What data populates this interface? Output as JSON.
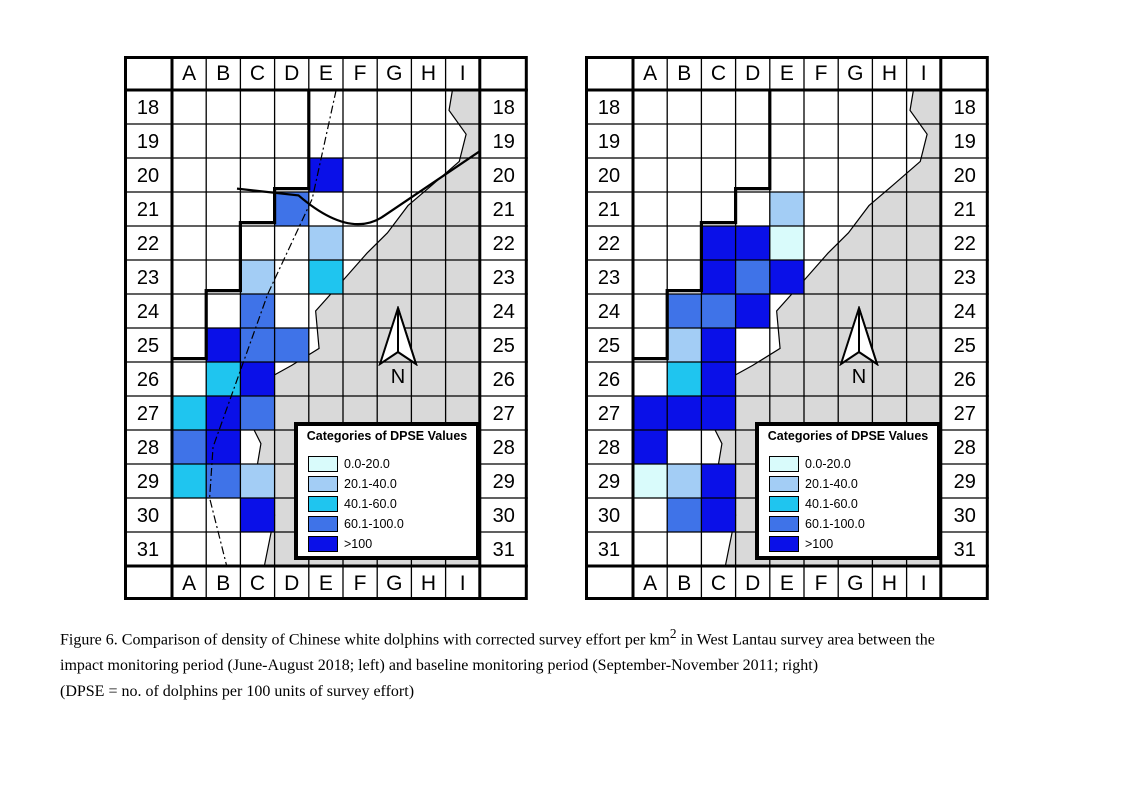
{
  "columns": [
    "A",
    "B",
    "C",
    "D",
    "E",
    "F",
    "G",
    "H",
    "I"
  ],
  "rows": [
    "18",
    "19",
    "20",
    "21",
    "22",
    "23",
    "24",
    "25",
    "26",
    "27",
    "28",
    "29",
    "30",
    "31"
  ],
  "colors": {
    "0.0-20.0": "#d9fbfb",
    "20.1-40.0": "#a3cdf5",
    "40.1-60.0": "#1fc5ef",
    "60.1-100.0": "#3f73e8",
    ">100": "#0a10e8",
    "land": "#d9d9d9"
  },
  "legend": {
    "title": "Categories of DPSE Values",
    "items": [
      {
        "label": "0.0-20.0",
        "key": "0.0-20.0"
      },
      {
        "label": "20.1-40.0",
        "key": "20.1-40.0"
      },
      {
        "label": "40.1-60.0",
        "key": "40.1-60.0"
      },
      {
        "label": "60.1-100.0",
        "key": "60.1-100.0"
      },
      {
        "label": ">100",
        "key": ">100"
      }
    ]
  },
  "north_label": "N",
  "maps": [
    {
      "id": "impact",
      "cells": [
        {
          "cell": "E20",
          "category": ">100"
        },
        {
          "cell": "D21",
          "category": "60.1-100.0"
        },
        {
          "cell": "E22",
          "category": "20.1-40.0"
        },
        {
          "cell": "C23",
          "category": "20.1-40.0"
        },
        {
          "cell": "E23",
          "category": "40.1-60.0"
        },
        {
          "cell": "C24",
          "category": "60.1-100.0"
        },
        {
          "cell": "B25",
          "category": ">100"
        },
        {
          "cell": "C25",
          "category": "60.1-100.0"
        },
        {
          "cell": "D25",
          "category": "60.1-100.0"
        },
        {
          "cell": "B26",
          "category": "40.1-60.0"
        },
        {
          "cell": "C26",
          "category": ">100"
        },
        {
          "cell": "A27",
          "category": "40.1-60.0"
        },
        {
          "cell": "B27",
          "category": ">100"
        },
        {
          "cell": "C27",
          "category": "60.1-100.0"
        },
        {
          "cell": "A28",
          "category": "60.1-100.0"
        },
        {
          "cell": "B28",
          "category": ">100"
        },
        {
          "cell": "A29",
          "category": "40.1-60.0"
        },
        {
          "cell": "B29",
          "category": "60.1-100.0"
        },
        {
          "cell": "C29",
          "category": "20.1-40.0"
        },
        {
          "cell": "C30",
          "category": ">100"
        }
      ]
    },
    {
      "id": "baseline",
      "cells": [
        {
          "cell": "E21",
          "category": "20.1-40.0"
        },
        {
          "cell": "C22",
          "category": ">100"
        },
        {
          "cell": "D22",
          "category": ">100"
        },
        {
          "cell": "E22",
          "category": "0.0-20.0"
        },
        {
          "cell": "C23",
          "category": ">100"
        },
        {
          "cell": "D23",
          "category": "60.1-100.0"
        },
        {
          "cell": "E23",
          "category": ">100"
        },
        {
          "cell": "B24",
          "category": "60.1-100.0"
        },
        {
          "cell": "C24",
          "category": "60.1-100.0"
        },
        {
          "cell": "D24",
          "category": ">100"
        },
        {
          "cell": "B25",
          "category": "20.1-40.0"
        },
        {
          "cell": "C25",
          "category": ">100"
        },
        {
          "cell": "B26",
          "category": "40.1-60.0"
        },
        {
          "cell": "C26",
          "category": ">100"
        },
        {
          "cell": "A27",
          "category": ">100"
        },
        {
          "cell": "B27",
          "category": ">100"
        },
        {
          "cell": "C27",
          "category": ">100"
        },
        {
          "cell": "A28",
          "category": ">100"
        },
        {
          "cell": "A29",
          "category": "0.0-20.0"
        },
        {
          "cell": "B29",
          "category": "20.1-40.0"
        },
        {
          "cell": "C29",
          "category": ">100"
        },
        {
          "cell": "B30",
          "category": "60.1-100.0"
        },
        {
          "cell": "C30",
          "category": ">100"
        }
      ]
    }
  ],
  "caption": {
    "line1_pre": "Figure 6.  Comparison of density of Chinese white dolphins with corrected survey effort per km",
    "line1_sup": "2",
    "line1_post": " in West Lantau survey area between the",
    "line2": "impact monitoring period (June-August 2018; left) and baseline monitoring period (September-November 2011; right)",
    "line3": "(DPSE = no. of dolphins per 100 units of survey effort)"
  }
}
